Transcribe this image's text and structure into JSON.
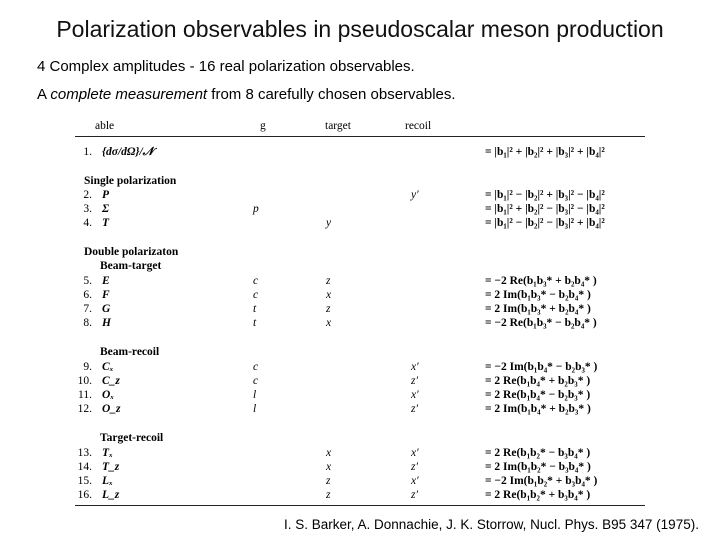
{
  "header": {
    "title": "Polarization observables in pseudoscalar meson production"
  },
  "bullets": [
    {
      "text": "4 Complex amplitudes - 16 real polarization observables."
    },
    {
      "before": "A ",
      "emphasis": "complete measurement",
      "after": " from 8 carefully chosen observables."
    }
  ],
  "table": {
    "columns": [
      "able",
      "g",
      "target",
      "recoil"
    ],
    "groups": [
      {
        "rows": [
          {
            "number": "1.",
            "observable": "{dσ/dΩ}/𝒩",
            "expression": "= |b₁|² + |b₂|² + |b₃|² + |b₄|²"
          }
        ]
      },
      {
        "heading": "Single  polarization",
        "rows": [
          {
            "number": "2.",
            "observable": "P",
            "recoil": "y′",
            "expression": "= |b₁|² − |b₂|² + |b₃|² − |b₄|²"
          },
          {
            "number": "3.",
            "observable": "Σ",
            "beam": "p",
            "expression": "= |b₁|² + |b₂|² − |b₃|² − |b₄|²"
          },
          {
            "number": "4.",
            "observable": "T",
            "target": "y",
            "expression": "= |b₁|² − |b₂|² − |b₃|² + |b₄|²"
          }
        ]
      },
      {
        "heading": "Double polarizaton",
        "subheading": "Beam-target",
        "rows": [
          {
            "number": "5.",
            "observable": "E",
            "beam": "c",
            "target": "z",
            "expression": "= −2 Re(b₁b₃* + b₂b₄* )"
          },
          {
            "number": "6.",
            "observable": "F",
            "beam": "c",
            "target": "x",
            "expression": "= 2 Im(b₁b₃* − b₂b₄* )"
          },
          {
            "number": "7.",
            "observable": "G",
            "beam": "t",
            "target": "z",
            "expression": "= 2 Im(b₁b₃* + b₂b₄* )"
          },
          {
            "number": "8.",
            "observable": "H",
            "beam": "t",
            "target": "x",
            "expression": "= −2 Re(b₁b₃* − b₂b₄* )"
          }
        ]
      },
      {
        "subheading": "Beam-recoil",
        "rows": [
          {
            "number": "9.",
            "observable": "Cₓ",
            "beam": "c",
            "recoil": "x′",
            "expression": "= −2 Im(b₁b₄* − b₂b₃* )"
          },
          {
            "number": "10.",
            "observable": "C_z",
            "beam": "c",
            "recoil": "z′",
            "expression": "= 2 Re(b₁b₄* + b₂b₃* )"
          },
          {
            "number": "11.",
            "observable": "Oₓ",
            "beam": "l",
            "recoil": "x′",
            "expression": "= 2 Re(b₁b₄* − b₂b₃* )"
          },
          {
            "number": "12.",
            "observable": "O_z",
            "beam": "l",
            "recoil": "z′",
            "expression": "= 2 Im(b₁b₄* + b₂b₃* )"
          }
        ]
      },
      {
        "subheading": "Target-recoil",
        "rows": [
          {
            "number": "13.",
            "observable": "Tₓ",
            "target": "x",
            "recoil": "x′",
            "expression": "= 2 Re(b₁b₂* − b₃b₄* )"
          },
          {
            "number": "14.",
            "observable": "T_z",
            "target": "x",
            "recoil": "z′",
            "expression": "= 2 Im(b₁b₂* − b₃b₄* )"
          },
          {
            "number": "15.",
            "observable": "Lₓ",
            "target": "z",
            "recoil": "x′",
            "expression": "= −2 Im(b₁b₂* + b₃b₄* )"
          },
          {
            "number": "16.",
            "observable": "L_z",
            "target": "z",
            "recoil": "z′",
            "expression": "= 2 Re(b₁b₂* + b₃b₄* )"
          }
        ]
      }
    ]
  },
  "citation": "I. S. Barker, A. Donnachie, J. K. Storrow, Nucl. Phys. B95 347 (1975)."
}
